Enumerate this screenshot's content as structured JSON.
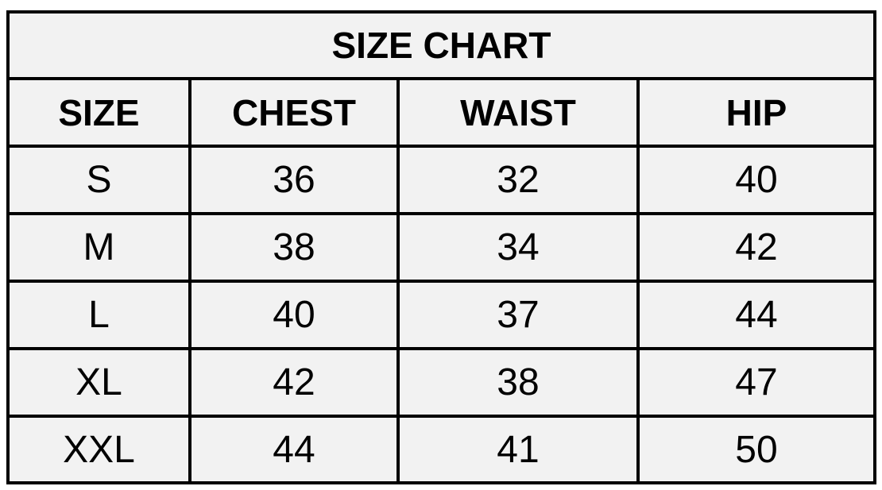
{
  "title": "SIZE CHART",
  "headers": [
    "SIZE",
    "CHEST",
    "WAIST",
    "HIP"
  ],
  "rows": [
    [
      "S",
      "36",
      "32",
      "40"
    ],
    [
      "M",
      "38",
      "34",
      "42"
    ],
    [
      "L",
      "40",
      "37",
      "44"
    ],
    [
      "XL",
      "42",
      "38",
      "47"
    ],
    [
      "XXL",
      "44",
      "41",
      "50"
    ]
  ],
  "colors": {
    "cell_background": "#f2f2f2",
    "border": "#000000",
    "text": "#000000"
  }
}
